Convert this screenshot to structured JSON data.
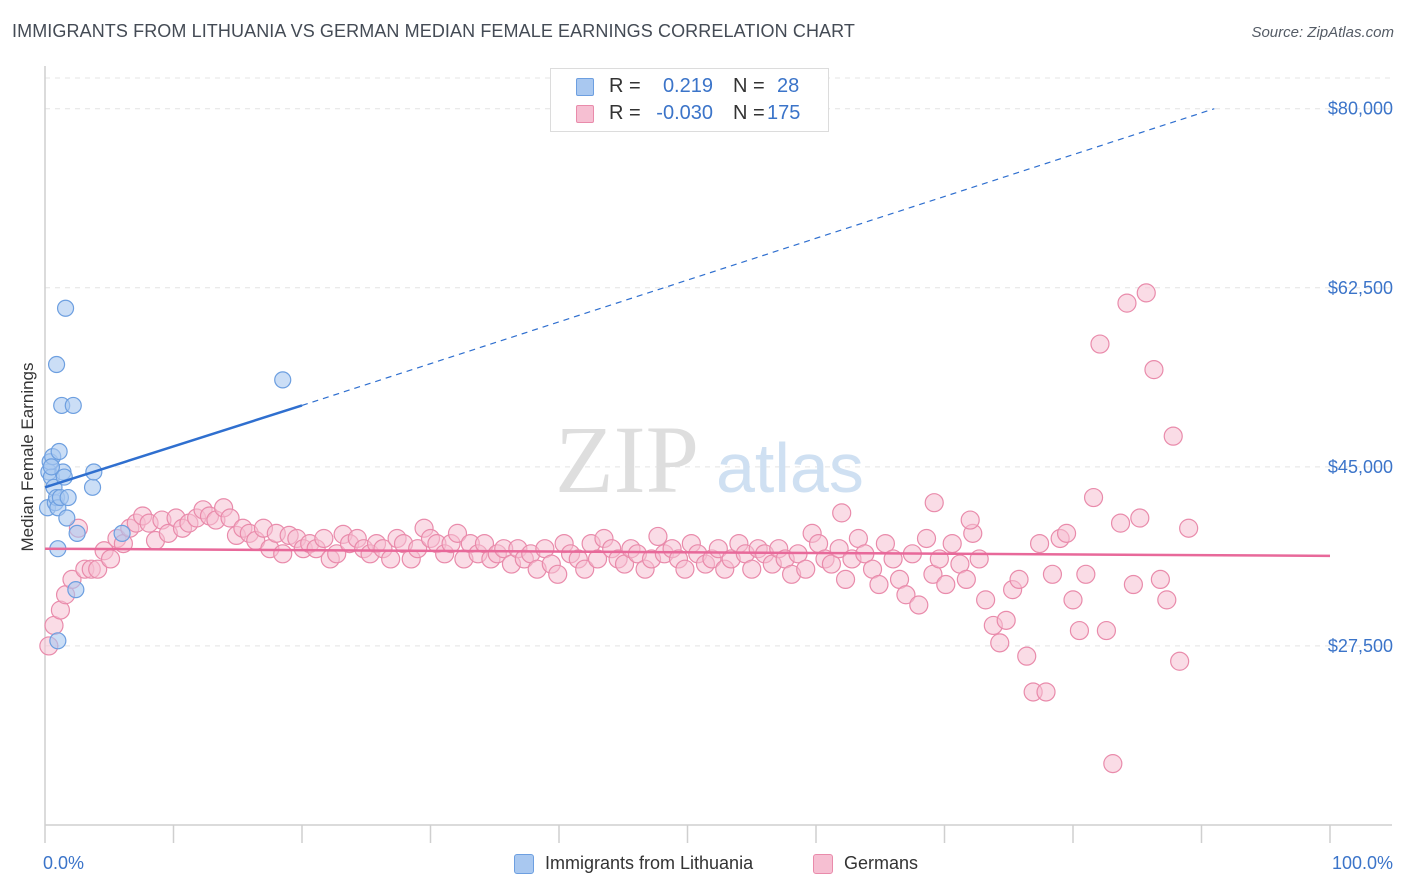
{
  "title": "IMMIGRANTS FROM LITHUANIA VS GERMAN MEDIAN FEMALE EARNINGS CORRELATION CHART",
  "source": "Source: ZipAtlas.com",
  "watermark": {
    "zip": "ZIP",
    "atlas": "atlas"
  },
  "legend": {
    "rows": [
      {
        "r_label": "R =",
        "r_value": "0.219",
        "n_label": "N =",
        "n_value": "28"
      },
      {
        "r_label": "R =",
        "r_value": "-0.030",
        "n_label": "N =",
        "n_value": "175"
      }
    ]
  },
  "bottom_legend": [
    "Immigrants from Lithuania",
    "Germans"
  ],
  "colors": {
    "blue_fill": "#a9c8f0",
    "blue_stroke": "#6d9fe0",
    "blue_line": "#2f6fcf",
    "pink_fill": "#f6bfd2",
    "pink_stroke": "#e98bab",
    "pink_line": "#e8699a",
    "axis_label": "#3b74c9",
    "grid": "#e4e4e4"
  },
  "chart_data": {
    "type": "scatter",
    "title": "IMMIGRANTS FROM LITHUANIA VS GERMAN MEDIAN FEMALE EARNINGS CORRELATION CHART",
    "xlabel": "",
    "ylabel": "Median Female Earnings",
    "xlim": [
      0,
      100
    ],
    "ylim": [
      10000,
      83000
    ],
    "x_tick_labels": [
      "0.0%",
      "100.0%"
    ],
    "y_ticks": [
      27500,
      45000,
      62500,
      80000
    ],
    "y_tick_labels": [
      "$27,500",
      "$45,000",
      "$62,500",
      "$80,000"
    ],
    "grid": true,
    "series": [
      {
        "name": "Immigrants from Lithuania",
        "r": 0.219,
        "n": 28,
        "trend": {
          "x0": 0,
          "y0": 43000,
          "x1": 20,
          "y1": 51000,
          "x_dash_end": 91,
          "y_dash_end": 80000
        },
        "points": [
          [
            0.2,
            41000
          ],
          [
            0.3,
            44500
          ],
          [
            0.4,
            45500
          ],
          [
            0.5,
            44000
          ],
          [
            0.6,
            46000
          ],
          [
            0.7,
            43000
          ],
          [
            0.8,
            41500
          ],
          [
            0.9,
            42000
          ],
          [
            1.0,
            41000
          ],
          [
            1.0,
            37000
          ],
          [
            1.1,
            46500
          ],
          [
            1.2,
            42000
          ],
          [
            1.3,
            51000
          ],
          [
            1.4,
            44500
          ],
          [
            1.5,
            44000
          ],
          [
            1.6,
            60500
          ],
          [
            1.7,
            40000
          ],
          [
            1.8,
            42000
          ],
          [
            2.2,
            51000
          ],
          [
            2.4,
            33000
          ],
          [
            2.5,
            38500
          ],
          [
            3.7,
            43000
          ],
          [
            3.8,
            44500
          ],
          [
            6.0,
            38500
          ],
          [
            1.0,
            28000
          ],
          [
            0.5,
            45000
          ],
          [
            0.9,
            55000
          ],
          [
            18.5,
            53500
          ]
        ]
      },
      {
        "name": "Germans",
        "r": -0.03,
        "n": 175,
        "trend": {
          "x0": 0,
          "y0": 37000,
          "x1": 100,
          "y1": 36300
        },
        "points": [
          [
            0.3,
            27500
          ],
          [
            0.7,
            29500
          ],
          [
            1.2,
            31000
          ],
          [
            1.6,
            32500
          ],
          [
            2.1,
            34000
          ],
          [
            2.6,
            39000
          ],
          [
            3.1,
            35000
          ],
          [
            3.6,
            35000
          ],
          [
            4.1,
            35000
          ],
          [
            4.6,
            36800
          ],
          [
            5.1,
            36000
          ],
          [
            5.6,
            38000
          ],
          [
            6.1,
            37500
          ],
          [
            6.6,
            39000
          ],
          [
            7.1,
            39500
          ],
          [
            7.6,
            40200
          ],
          [
            8.1,
            39500
          ],
          [
            8.6,
            37800
          ],
          [
            9.1,
            39800
          ],
          [
            9.6,
            38500
          ],
          [
            10.2,
            40000
          ],
          [
            10.7,
            39000
          ],
          [
            11.2,
            39500
          ],
          [
            11.8,
            40000
          ],
          [
            12.3,
            40800
          ],
          [
            12.8,
            40200
          ],
          [
            13.3,
            39800
          ],
          [
            13.9,
            41000
          ],
          [
            14.4,
            40000
          ],
          [
            14.9,
            38300
          ],
          [
            15.4,
            39000
          ],
          [
            15.9,
            38500
          ],
          [
            16.4,
            37800
          ],
          [
            17.0,
            39000
          ],
          [
            17.5,
            37000
          ],
          [
            18.0,
            38500
          ],
          [
            18.5,
            36500
          ],
          [
            19.0,
            38300
          ],
          [
            19.6,
            38000
          ],
          [
            20.1,
            37000
          ],
          [
            20.6,
            37500
          ],
          [
            21.1,
            37000
          ],
          [
            21.7,
            38000
          ],
          [
            22.2,
            36000
          ],
          [
            22.7,
            36500
          ],
          [
            23.2,
            38400
          ],
          [
            23.7,
            37500
          ],
          [
            24.3,
            38000
          ],
          [
            24.8,
            37000
          ],
          [
            25.3,
            36500
          ],
          [
            25.8,
            37500
          ],
          [
            26.3,
            37000
          ],
          [
            26.9,
            36000
          ],
          [
            27.4,
            38000
          ],
          [
            27.9,
            37500
          ],
          [
            28.5,
            36000
          ],
          [
            29.0,
            37000
          ],
          [
            29.5,
            39000
          ],
          [
            30.0,
            38000
          ],
          [
            30.5,
            37500
          ],
          [
            31.1,
            36500
          ],
          [
            31.6,
            37500
          ],
          [
            32.1,
            38500
          ],
          [
            32.6,
            36000
          ],
          [
            33.1,
            37500
          ],
          [
            33.7,
            36500
          ],
          [
            34.2,
            37500
          ],
          [
            34.7,
            36000
          ],
          [
            35.2,
            36500
          ],
          [
            35.7,
            37000
          ],
          [
            36.3,
            35500
          ],
          [
            36.8,
            37000
          ],
          [
            37.3,
            36000
          ],
          [
            37.8,
            36500
          ],
          [
            38.3,
            35000
          ],
          [
            38.9,
            37000
          ],
          [
            39.4,
            35500
          ],
          [
            39.9,
            34500
          ],
          [
            40.4,
            37500
          ],
          [
            40.9,
            36500
          ],
          [
            41.5,
            36000
          ],
          [
            42.0,
            35000
          ],
          [
            42.5,
            37500
          ],
          [
            43.0,
            36000
          ],
          [
            43.5,
            38000
          ],
          [
            44.1,
            37000
          ],
          [
            44.6,
            36000
          ],
          [
            45.1,
            35500
          ],
          [
            45.6,
            37000
          ],
          [
            46.1,
            36500
          ],
          [
            46.7,
            35000
          ],
          [
            47.2,
            36000
          ],
          [
            47.7,
            38200
          ],
          [
            48.2,
            36500
          ],
          [
            48.8,
            37000
          ],
          [
            49.3,
            36000
          ],
          [
            49.8,
            35000
          ],
          [
            50.3,
            37500
          ],
          [
            50.8,
            36500
          ],
          [
            51.4,
            35500
          ],
          [
            51.9,
            36000
          ],
          [
            52.4,
            37000
          ],
          [
            52.9,
            35000
          ],
          [
            53.4,
            36000
          ],
          [
            54.0,
            37500
          ],
          [
            54.5,
            36500
          ],
          [
            55.0,
            35000
          ],
          [
            55.5,
            37000
          ],
          [
            56.0,
            36500
          ],
          [
            56.6,
            35500
          ],
          [
            57.1,
            37000
          ],
          [
            57.6,
            36000
          ],
          [
            58.1,
            34500
          ],
          [
            58.6,
            36500
          ],
          [
            59.2,
            35000
          ],
          [
            59.7,
            38500
          ],
          [
            60.2,
            37500
          ],
          [
            60.7,
            36000
          ],
          [
            61.2,
            35500
          ],
          [
            61.8,
            37000
          ],
          [
            62.3,
            34000
          ],
          [
            62.8,
            36000
          ],
          [
            63.3,
            38000
          ],
          [
            63.8,
            36500
          ],
          [
            64.4,
            35000
          ],
          [
            64.9,
            33500
          ],
          [
            65.4,
            37500
          ],
          [
            66.0,
            36000
          ],
          [
            66.5,
            34000
          ],
          [
            67.0,
            32500
          ],
          [
            67.5,
            36500
          ],
          [
            68.0,
            31500
          ],
          [
            68.6,
            38000
          ],
          [
            69.1,
            34500
          ],
          [
            69.6,
            36000
          ],
          [
            70.1,
            33500
          ],
          [
            70.6,
            37500
          ],
          [
            71.2,
            35500
          ],
          [
            71.7,
            34000
          ],
          [
            72.2,
            38500
          ],
          [
            72.7,
            36000
          ],
          [
            73.2,
            32000
          ],
          [
            73.8,
            29500
          ],
          [
            74.3,
            27800
          ],
          [
            74.8,
            30000
          ],
          [
            75.3,
            33000
          ],
          [
            75.8,
            34000
          ],
          [
            76.4,
            26500
          ],
          [
            76.9,
            23000
          ],
          [
            77.4,
            37500
          ],
          [
            77.9,
            23000
          ],
          [
            78.4,
            34500
          ],
          [
            79.0,
            38000
          ],
          [
            79.5,
            38500
          ],
          [
            80.0,
            32000
          ],
          [
            80.5,
            29000
          ],
          [
            81.0,
            34500
          ],
          [
            81.6,
            42000
          ],
          [
            82.1,
            57000
          ],
          [
            82.6,
            29000
          ],
          [
            83.1,
            16000
          ],
          [
            83.7,
            39500
          ],
          [
            84.2,
            61000
          ],
          [
            84.7,
            33500
          ],
          [
            85.2,
            40000
          ],
          [
            85.7,
            62000
          ],
          [
            86.3,
            54500
          ],
          [
            86.8,
            34000
          ],
          [
            87.3,
            32000
          ],
          [
            87.8,
            48000
          ],
          [
            88.3,
            26000
          ],
          [
            89.0,
            39000
          ],
          [
            69.2,
            41500
          ],
          [
            62.0,
            40500
          ],
          [
            72.0,
            39800
          ]
        ]
      }
    ]
  }
}
